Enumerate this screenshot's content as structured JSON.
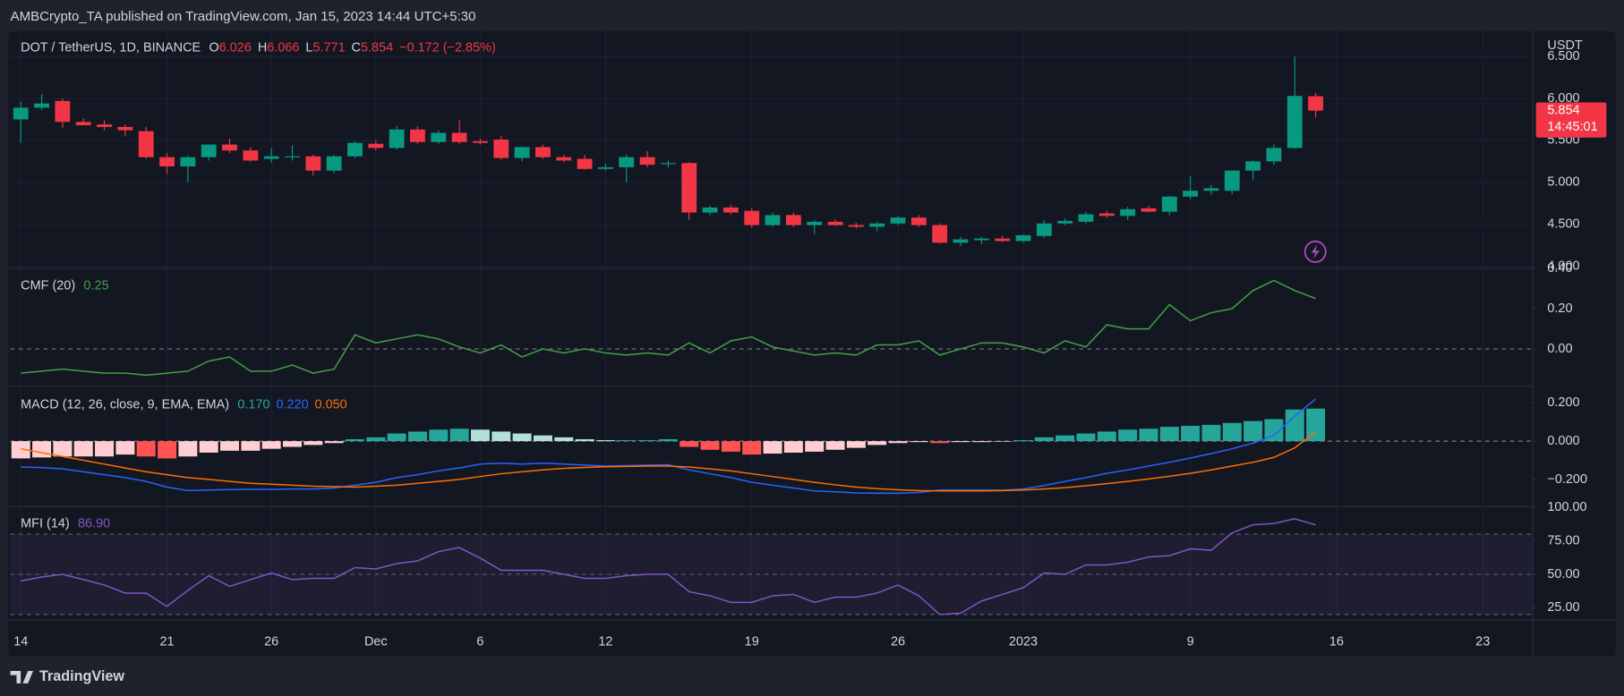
{
  "header": {
    "publisher": "AMBCrypto_TA published on TradingView.com, Jan 15, 2023 14:44 UTC+5:30"
  },
  "footer": {
    "brand": "TradingView"
  },
  "chart_data": [
    {
      "type": "candlestick",
      "title": "DOT / TetherUS, 1D, BINANCE",
      "ohlc_labels": [
        "O",
        "H",
        "L",
        "C"
      ],
      "change": "−0.172 (−2.85%)",
      "y_axis_label": "USDT",
      "countdown": "14:45:01",
      "up_color": "#089981",
      "down_color": "#f23645",
      "grid": true,
      "open": [
        5.75,
        5.89,
        5.97,
        5.72,
        5.69,
        5.66,
        5.61,
        5.3,
        5.19,
        5.3,
        5.45,
        5.38,
        5.28,
        5.3,
        5.31,
        5.14,
        5.31,
        5.46,
        5.41,
        5.63,
        5.48,
        5.59,
        5.49,
        5.51,
        5.29,
        5.42,
        5.3,
        5.28,
        5.16,
        5.18,
        5.3,
        5.22,
        5.23,
        4.64,
        4.7,
        4.66,
        4.49,
        4.61,
        4.49,
        4.53,
        4.49,
        4.47,
        4.51,
        4.58,
        4.49,
        4.28,
        4.31,
        4.33,
        4.3,
        4.36,
        4.51,
        4.53,
        4.63,
        4.6,
        4.69,
        4.65,
        4.83,
        4.9,
        4.9,
        5.14,
        5.25,
        5.41,
        6.026
      ],
      "high": [
        5.96,
        6.05,
        6.0,
        5.76,
        5.74,
        5.69,
        5.66,
        5.35,
        5.32,
        5.45,
        5.52,
        5.42,
        5.41,
        5.44,
        5.33,
        5.33,
        5.49,
        5.5,
        5.67,
        5.67,
        5.62,
        5.74,
        5.52,
        5.55,
        5.43,
        5.45,
        5.33,
        5.33,
        5.22,
        5.33,
        5.37,
        5.26,
        5.24,
        4.72,
        4.73,
        4.69,
        4.64,
        4.64,
        4.55,
        4.56,
        4.52,
        4.53,
        4.6,
        4.61,
        4.51,
        4.35,
        4.35,
        4.36,
        4.38,
        4.55,
        4.57,
        4.65,
        4.66,
        4.71,
        4.72,
        4.84,
        5.07,
        4.97,
        5.14,
        5.26,
        5.45,
        6.5,
        6.066
      ],
      "low": [
        5.47,
        5.86,
        5.65,
        5.68,
        5.62,
        5.55,
        5.28,
        5.1,
        5.0,
        5.26,
        5.35,
        5.25,
        5.23,
        5.26,
        5.08,
        5.11,
        5.29,
        5.38,
        5.39,
        5.46,
        5.46,
        5.46,
        5.45,
        5.27,
        5.25,
        5.28,
        5.24,
        5.15,
        5.14,
        5.0,
        5.18,
        5.18,
        4.55,
        4.61,
        4.62,
        4.46,
        4.47,
        4.47,
        4.38,
        4.48,
        4.45,
        4.42,
        4.49,
        4.47,
        4.27,
        4.24,
        4.26,
        4.29,
        4.28,
        4.34,
        4.49,
        4.51,
        4.58,
        4.55,
        4.64,
        4.61,
        4.8,
        4.85,
        4.86,
        5.03,
        5.21,
        5.4,
        5.771
      ],
      "close": [
        5.89,
        5.94,
        5.72,
        5.68,
        5.66,
        5.62,
        5.3,
        5.19,
        5.3,
        5.45,
        5.38,
        5.26,
        5.31,
        5.31,
        5.14,
        5.31,
        5.47,
        5.41,
        5.63,
        5.48,
        5.59,
        5.48,
        5.47,
        5.29,
        5.42,
        5.3,
        5.26,
        5.16,
        5.18,
        5.3,
        5.21,
        5.23,
        4.64,
        4.7,
        4.64,
        4.49,
        4.61,
        4.49,
        4.53,
        4.49,
        4.47,
        4.51,
        4.58,
        4.49,
        4.28,
        4.32,
        4.33,
        4.3,
        4.37,
        4.51,
        4.54,
        4.62,
        4.6,
        4.68,
        4.65,
        4.83,
        4.9,
        4.93,
        5.14,
        5.25,
        5.41,
        6.03,
        5.854
      ],
      "ylim": [
        4.0,
        6.8
      ],
      "yticks": [
        {
          "value": 4.0,
          "label": "4.000"
        },
        {
          "value": 4.5,
          "label": "4.500"
        },
        {
          "value": 5.0,
          "label": "5.000"
        },
        {
          "value": 5.5,
          "label": "5.500"
        },
        {
          "value": 6.0,
          "label": "6.000"
        },
        {
          "value": 6.5,
          "label": "6.500"
        }
      ],
      "xlim": [
        -0.5,
        72.4
      ],
      "xticks": [
        {
          "value": 0,
          "label": "14"
        },
        {
          "value": 7,
          "label": "21"
        },
        {
          "value": 12,
          "label": "26"
        },
        {
          "value": 17,
          "label": "Dec"
        },
        {
          "value": 22,
          "label": "6"
        },
        {
          "value": 28,
          "label": "12"
        },
        {
          "value": 35,
          "label": "19"
        },
        {
          "value": 42,
          "label": "26"
        },
        {
          "value": 48,
          "label": "2023"
        },
        {
          "value": 56,
          "label": "9"
        },
        {
          "value": 63,
          "label": "16"
        },
        {
          "value": 70,
          "label": "23"
        }
      ]
    },
    {
      "type": "line",
      "title": "CMF (20)",
      "baseline": 0,
      "series": [
        {
          "type": "line",
          "color": "#43a047",
          "values": [
            -0.12,
            -0.11,
            -0.1,
            -0.11,
            -0.12,
            -0.12,
            -0.13,
            -0.12,
            -0.11,
            -0.06,
            -0.04,
            -0.11,
            -0.11,
            -0.08,
            -0.12,
            -0.1,
            0.07,
            0.03,
            0.05,
            0.07,
            0.05,
            0.01,
            -0.02,
            0.02,
            -0.04,
            0.0,
            -0.02,
            0.0,
            -0.02,
            -0.03,
            -0.02,
            -0.03,
            0.03,
            -0.02,
            0.04,
            0.06,
            0.01,
            -0.01,
            -0.03,
            -0.02,
            -0.03,
            0.02,
            0.02,
            0.04,
            -0.03,
            0.0,
            0.03,
            0.03,
            0.01,
            -0.02,
            0.04,
            0.01,
            0.12,
            0.1,
            0.1,
            0.22,
            0.14,
            0.18,
            0.2,
            0.29,
            0.34,
            0.29,
            0.25
          ]
        }
      ],
      "ylim": [
        -0.18,
        0.395
      ],
      "yticks": [
        {
          "value": 0,
          "label": "0.00"
        },
        {
          "value": 0.2,
          "label": "0.20"
        },
        {
          "value": 0.4,
          "label": "0.40"
        }
      ]
    },
    {
      "type": "combo",
      "title": "MACD (12, 26, close, 9, EMA, EMA)",
      "legend_values": [
        "0.170",
        "0.220",
        "0.050"
      ],
      "baseline": 0,
      "series": [
        {
          "type": "bar",
          "colors": [
            "#26a69a",
            "#b2dfdb",
            "#ffcdd2",
            "#ff5252"
          ],
          "values": [
            -0.09,
            -0.085,
            -0.08,
            -0.08,
            -0.08,
            -0.07,
            -0.08,
            -0.09,
            -0.08,
            -0.06,
            -0.05,
            -0.05,
            -0.04,
            -0.03,
            -0.02,
            -0.01,
            0.01,
            0.02,
            0.04,
            0.05,
            0.06,
            0.065,
            0.06,
            0.05,
            0.04,
            0.03,
            0.02,
            0.01,
            0.005,
            0.005,
            0.005,
            0.01,
            -0.03,
            -0.045,
            -0.055,
            -0.07,
            -0.065,
            -0.06,
            -0.055,
            -0.045,
            -0.035,
            -0.02,
            -0.01,
            -0.005,
            -0.01,
            -0.005,
            -0.005,
            -0.003,
            0.005,
            0.02,
            0.03,
            0.04,
            0.05,
            0.06,
            0.065,
            0.075,
            0.08,
            0.085,
            0.095,
            0.105,
            0.115,
            0.165,
            0.17
          ]
        },
        {
          "type": "line",
          "color": "#2962ff",
          "values": [
            -0.135,
            -0.138,
            -0.145,
            -0.16,
            -0.175,
            -0.19,
            -0.21,
            -0.24,
            -0.258,
            -0.255,
            -0.253,
            -0.252,
            -0.252,
            -0.25,
            -0.25,
            -0.245,
            -0.23,
            -0.215,
            -0.19,
            -0.175,
            -0.155,
            -0.14,
            -0.12,
            -0.115,
            -0.12,
            -0.115,
            -0.12,
            -0.125,
            -0.13,
            -0.128,
            -0.125,
            -0.123,
            -0.15,
            -0.17,
            -0.19,
            -0.215,
            -0.23,
            -0.245,
            -0.26,
            -0.265,
            -0.27,
            -0.272,
            -0.272,
            -0.268,
            -0.255,
            -0.255,
            -0.255,
            -0.256,
            -0.25,
            -0.232,
            -0.21,
            -0.19,
            -0.168,
            -0.15,
            -0.13,
            -0.11,
            -0.088,
            -0.065,
            -0.04,
            -0.01,
            0.03,
            0.13,
            0.22
          ]
        },
        {
          "type": "line",
          "color": "#ff6d00",
          "values": [
            -0.04,
            -0.06,
            -0.08,
            -0.1,
            -0.12,
            -0.14,
            -0.16,
            -0.175,
            -0.19,
            -0.2,
            -0.21,
            -0.22,
            -0.225,
            -0.23,
            -0.235,
            -0.237,
            -0.24,
            -0.235,
            -0.23,
            -0.22,
            -0.21,
            -0.2,
            -0.185,
            -0.17,
            -0.16,
            -0.15,
            -0.142,
            -0.137,
            -0.134,
            -0.132,
            -0.13,
            -0.13,
            -0.135,
            -0.145,
            -0.155,
            -0.17,
            -0.185,
            -0.2,
            -0.215,
            -0.228,
            -0.24,
            -0.248,
            -0.254,
            -0.258,
            -0.26,
            -0.26,
            -0.26,
            -0.258,
            -0.255,
            -0.25,
            -0.243,
            -0.233,
            -0.222,
            -0.21,
            -0.197,
            -0.183,
            -0.168,
            -0.15,
            -0.13,
            -0.11,
            -0.085,
            -0.035,
            0.05
          ]
        }
      ],
      "ylim": [
        -0.335,
        0.281
      ],
      "yticks": [
        {
          "value": -0.2,
          "label": "−0.200"
        },
        {
          "value": 0,
          "label": "0.000"
        },
        {
          "value": 0.2,
          "label": "0.200"
        }
      ]
    },
    {
      "type": "line",
      "title": "MFI (14)",
      "legend_values": [
        "86.90"
      ],
      "band_lines": [
        80,
        50,
        20
      ],
      "band_color": "#7e57c2",
      "series": [
        {
          "type": "line",
          "color": "#7e57c2",
          "values": [
            45,
            48,
            50,
            46,
            42,
            36,
            36,
            26,
            38,
            49,
            41,
            46,
            51,
            46,
            47,
            47,
            55,
            54,
            58,
            60,
            67,
            70,
            62,
            53,
            53,
            53,
            50,
            47,
            47,
            49,
            50,
            50,
            37,
            34,
            29,
            29,
            34,
            35,
            29,
            33,
            33,
            36,
            42,
            34,
            20,
            21,
            30,
            35,
            40,
            51,
            50,
            57,
            57,
            59,
            63,
            64,
            69,
            68,
            81,
            87,
            88,
            91.5,
            86.9
          ]
        }
      ],
      "ylim": [
        16.5,
        100
      ],
      "yticks": [
        {
          "value": 25,
          "label": "25.00"
        },
        {
          "value": 50,
          "label": "50.00"
        },
        {
          "value": 75,
          "label": "75.00"
        },
        {
          "value": 100,
          "label": "100.00"
        }
      ]
    }
  ]
}
